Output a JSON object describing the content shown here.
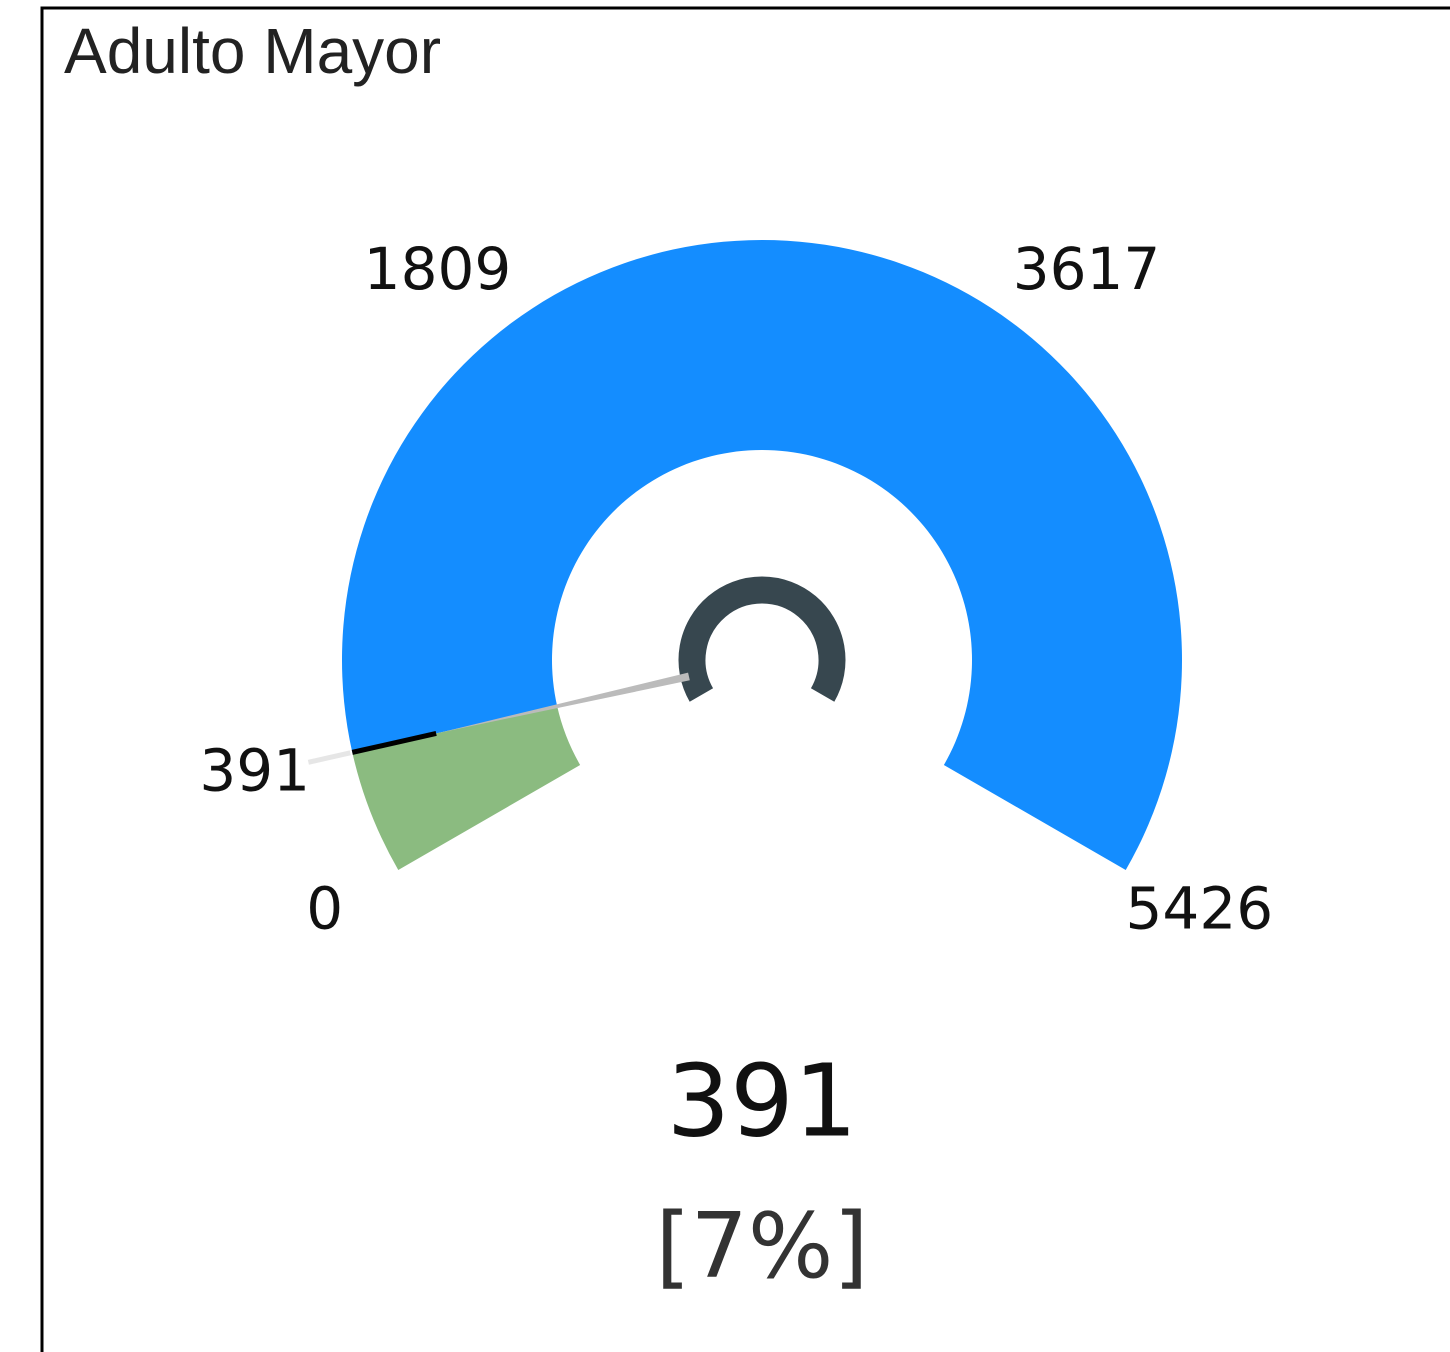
{
  "chart_data": {
    "type": "gauge",
    "title": "Adulto Mayor",
    "value": 391,
    "percent_label": "[7%]",
    "ylim": [
      0,
      5426
    ],
    "yticks": [
      0,
      1809,
      3617,
      5426
    ],
    "fill_color": "#8bbb80",
    "band_color": "#148dff",
    "hub_color": "#37474f"
  }
}
